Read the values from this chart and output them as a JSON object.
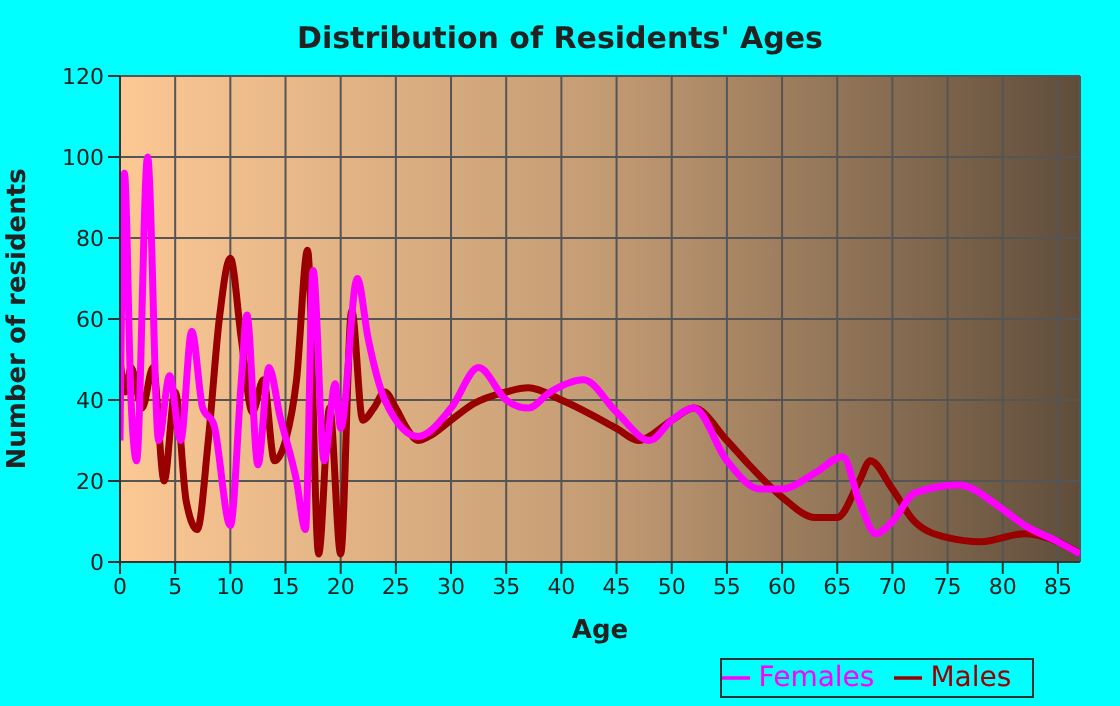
{
  "chart_data": {
    "type": "line",
    "title": "Distribution of Residents' Ages",
    "xlabel": "Age",
    "ylabel": "Number of residents",
    "xlim": [
      0,
      87
    ],
    "xticks": [
      0,
      5,
      10,
      15,
      20,
      25,
      30,
      35,
      40,
      45,
      50,
      55,
      60,
      65,
      70,
      75,
      80,
      85
    ],
    "ylim": [
      0,
      120
    ],
    "yticks": [
      0,
      20,
      40,
      60,
      80,
      100,
      120
    ],
    "grid": true,
    "legend": "bottom",
    "marker": "none",
    "line_style": "solid",
    "series": [
      {
        "name": "Males",
        "color": "#990000",
        "x": [
          0,
          0.5,
          1,
          2,
          3,
          4,
          5,
          6,
          7,
          8,
          9,
          10,
          11,
          12,
          13,
          14,
          15,
          16,
          17,
          18,
          19,
          20,
          21,
          22,
          23,
          24,
          25,
          26,
          27,
          28,
          30,
          32,
          35,
          37,
          40,
          45,
          47,
          50,
          52,
          55,
          57,
          60,
          63,
          65,
          67,
          68,
          70,
          72,
          75,
          78,
          82,
          85,
          87
        ],
        "values": [
          50,
          42,
          48,
          38,
          48,
          20,
          42,
          15,
          8,
          30,
          60,
          75,
          55,
          37,
          45,
          25,
          30,
          45,
          77,
          2,
          38,
          2,
          62,
          35,
          38,
          42,
          38,
          33,
          30,
          31,
          35,
          39,
          42,
          43,
          40,
          33,
          30,
          35,
          38,
          30,
          24,
          16,
          11,
          11,
          20,
          25,
          18,
          10,
          6,
          5,
          7,
          5,
          2
        ]
      },
      {
        "name": "Females",
        "color": "#ff00ff",
        "x": [
          0,
          0.4,
          1,
          1.5,
          2.5,
          3.5,
          4.5,
          5.5,
          6.5,
          7.5,
          8.5,
          10,
          11,
          11.5,
          12.5,
          13.5,
          14.5,
          16,
          16.8,
          17.5,
          18.5,
          19.5,
          20,
          21.5,
          22.5,
          24,
          27,
          30,
          32.5,
          35,
          37,
          39,
          42,
          45,
          48,
          50,
          52,
          55,
          58,
          60,
          63,
          65.5,
          67,
          68.5,
          70,
          72,
          76,
          80,
          82,
          85,
          87
        ],
        "values": [
          30,
          96,
          40,
          25,
          100,
          30,
          46,
          30,
          57,
          38,
          34,
          9,
          45,
          61,
          24,
          48,
          36,
          20,
          8,
          72,
          25,
          44,
          33,
          70,
          55,
          40,
          31,
          38,
          48,
          40,
          38,
          42,
          45,
          37,
          30,
          35,
          38,
          25,
          18,
          18,
          22,
          26,
          15,
          7,
          10,
          17,
          19,
          13,
          9,
          5,
          2
        ]
      }
    ]
  }
}
